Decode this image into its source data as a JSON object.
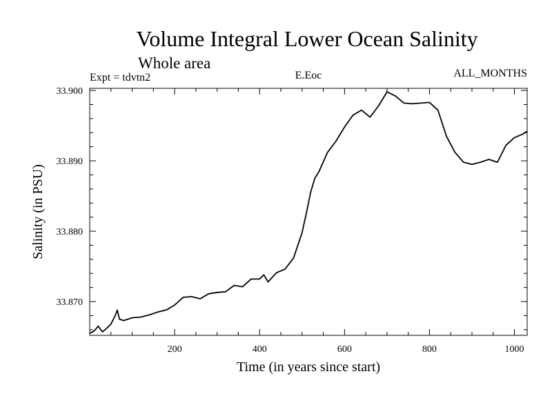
{
  "chart_data": {
    "type": "line",
    "title": "Volume Integral Lower Ocean Salinity",
    "subtitle": "Whole area",
    "header_left": "Expt = tdvtn2",
    "header_center": "E.Eoc",
    "header_right": "ALL_MONTHS",
    "xlabel": "Time (in years since start)",
    "ylabel": "Salinity (in PSU)",
    "xlim": [
      0,
      1030
    ],
    "ylim": [
      33.8652,
      33.9003
    ],
    "x_ticks": [
      200,
      400,
      600,
      800,
      1000
    ],
    "x_tick_labels": [
      "200",
      "400",
      "600",
      "800",
      "1000"
    ],
    "y_ticks": [
      33.87,
      33.88,
      33.89,
      33.9
    ],
    "y_tick_labels": [
      "33.870",
      "33.880",
      "33.890",
      "33.900"
    ],
    "series": [
      {
        "name": "salinity",
        "color": "#000000",
        "x": [
          0,
          10,
          20,
          30,
          40,
          50,
          60,
          65,
          70,
          80,
          100,
          120,
          140,
          160,
          180,
          200,
          220,
          240,
          260,
          280,
          300,
          320,
          340,
          360,
          380,
          400,
          410,
          420,
          440,
          460,
          480,
          500,
          510,
          520,
          530,
          540,
          560,
          580,
          600,
          620,
          640,
          660,
          680,
          700,
          720,
          740,
          760,
          780,
          800,
          820,
          840,
          860,
          880,
          900,
          920,
          940,
          960,
          980,
          1000,
          1020,
          1030
        ],
        "y": [
          33.8655,
          33.8658,
          33.8665,
          33.8657,
          33.8662,
          33.8668,
          33.868,
          33.8688,
          33.8675,
          33.8673,
          33.8677,
          33.8678,
          33.8681,
          33.8685,
          33.8688,
          33.8695,
          33.8706,
          33.8707,
          33.8704,
          33.8711,
          33.8713,
          33.8714,
          33.8723,
          33.8721,
          33.8732,
          33.8732,
          33.8738,
          33.8728,
          33.8741,
          33.8746,
          33.8762,
          33.8798,
          33.8825,
          33.8855,
          33.8875,
          33.8885,
          33.8912,
          33.8928,
          33.8948,
          33.8965,
          33.8972,
          33.8962,
          33.8978,
          33.8998,
          33.8992,
          33.8982,
          33.8981,
          33.8982,
          33.8983,
          33.8972,
          33.8935,
          33.8912,
          33.8898,
          33.8895,
          33.8898,
          33.8902,
          33.8898,
          33.8922,
          33.8933,
          33.8938,
          33.8942
        ]
      }
    ]
  }
}
